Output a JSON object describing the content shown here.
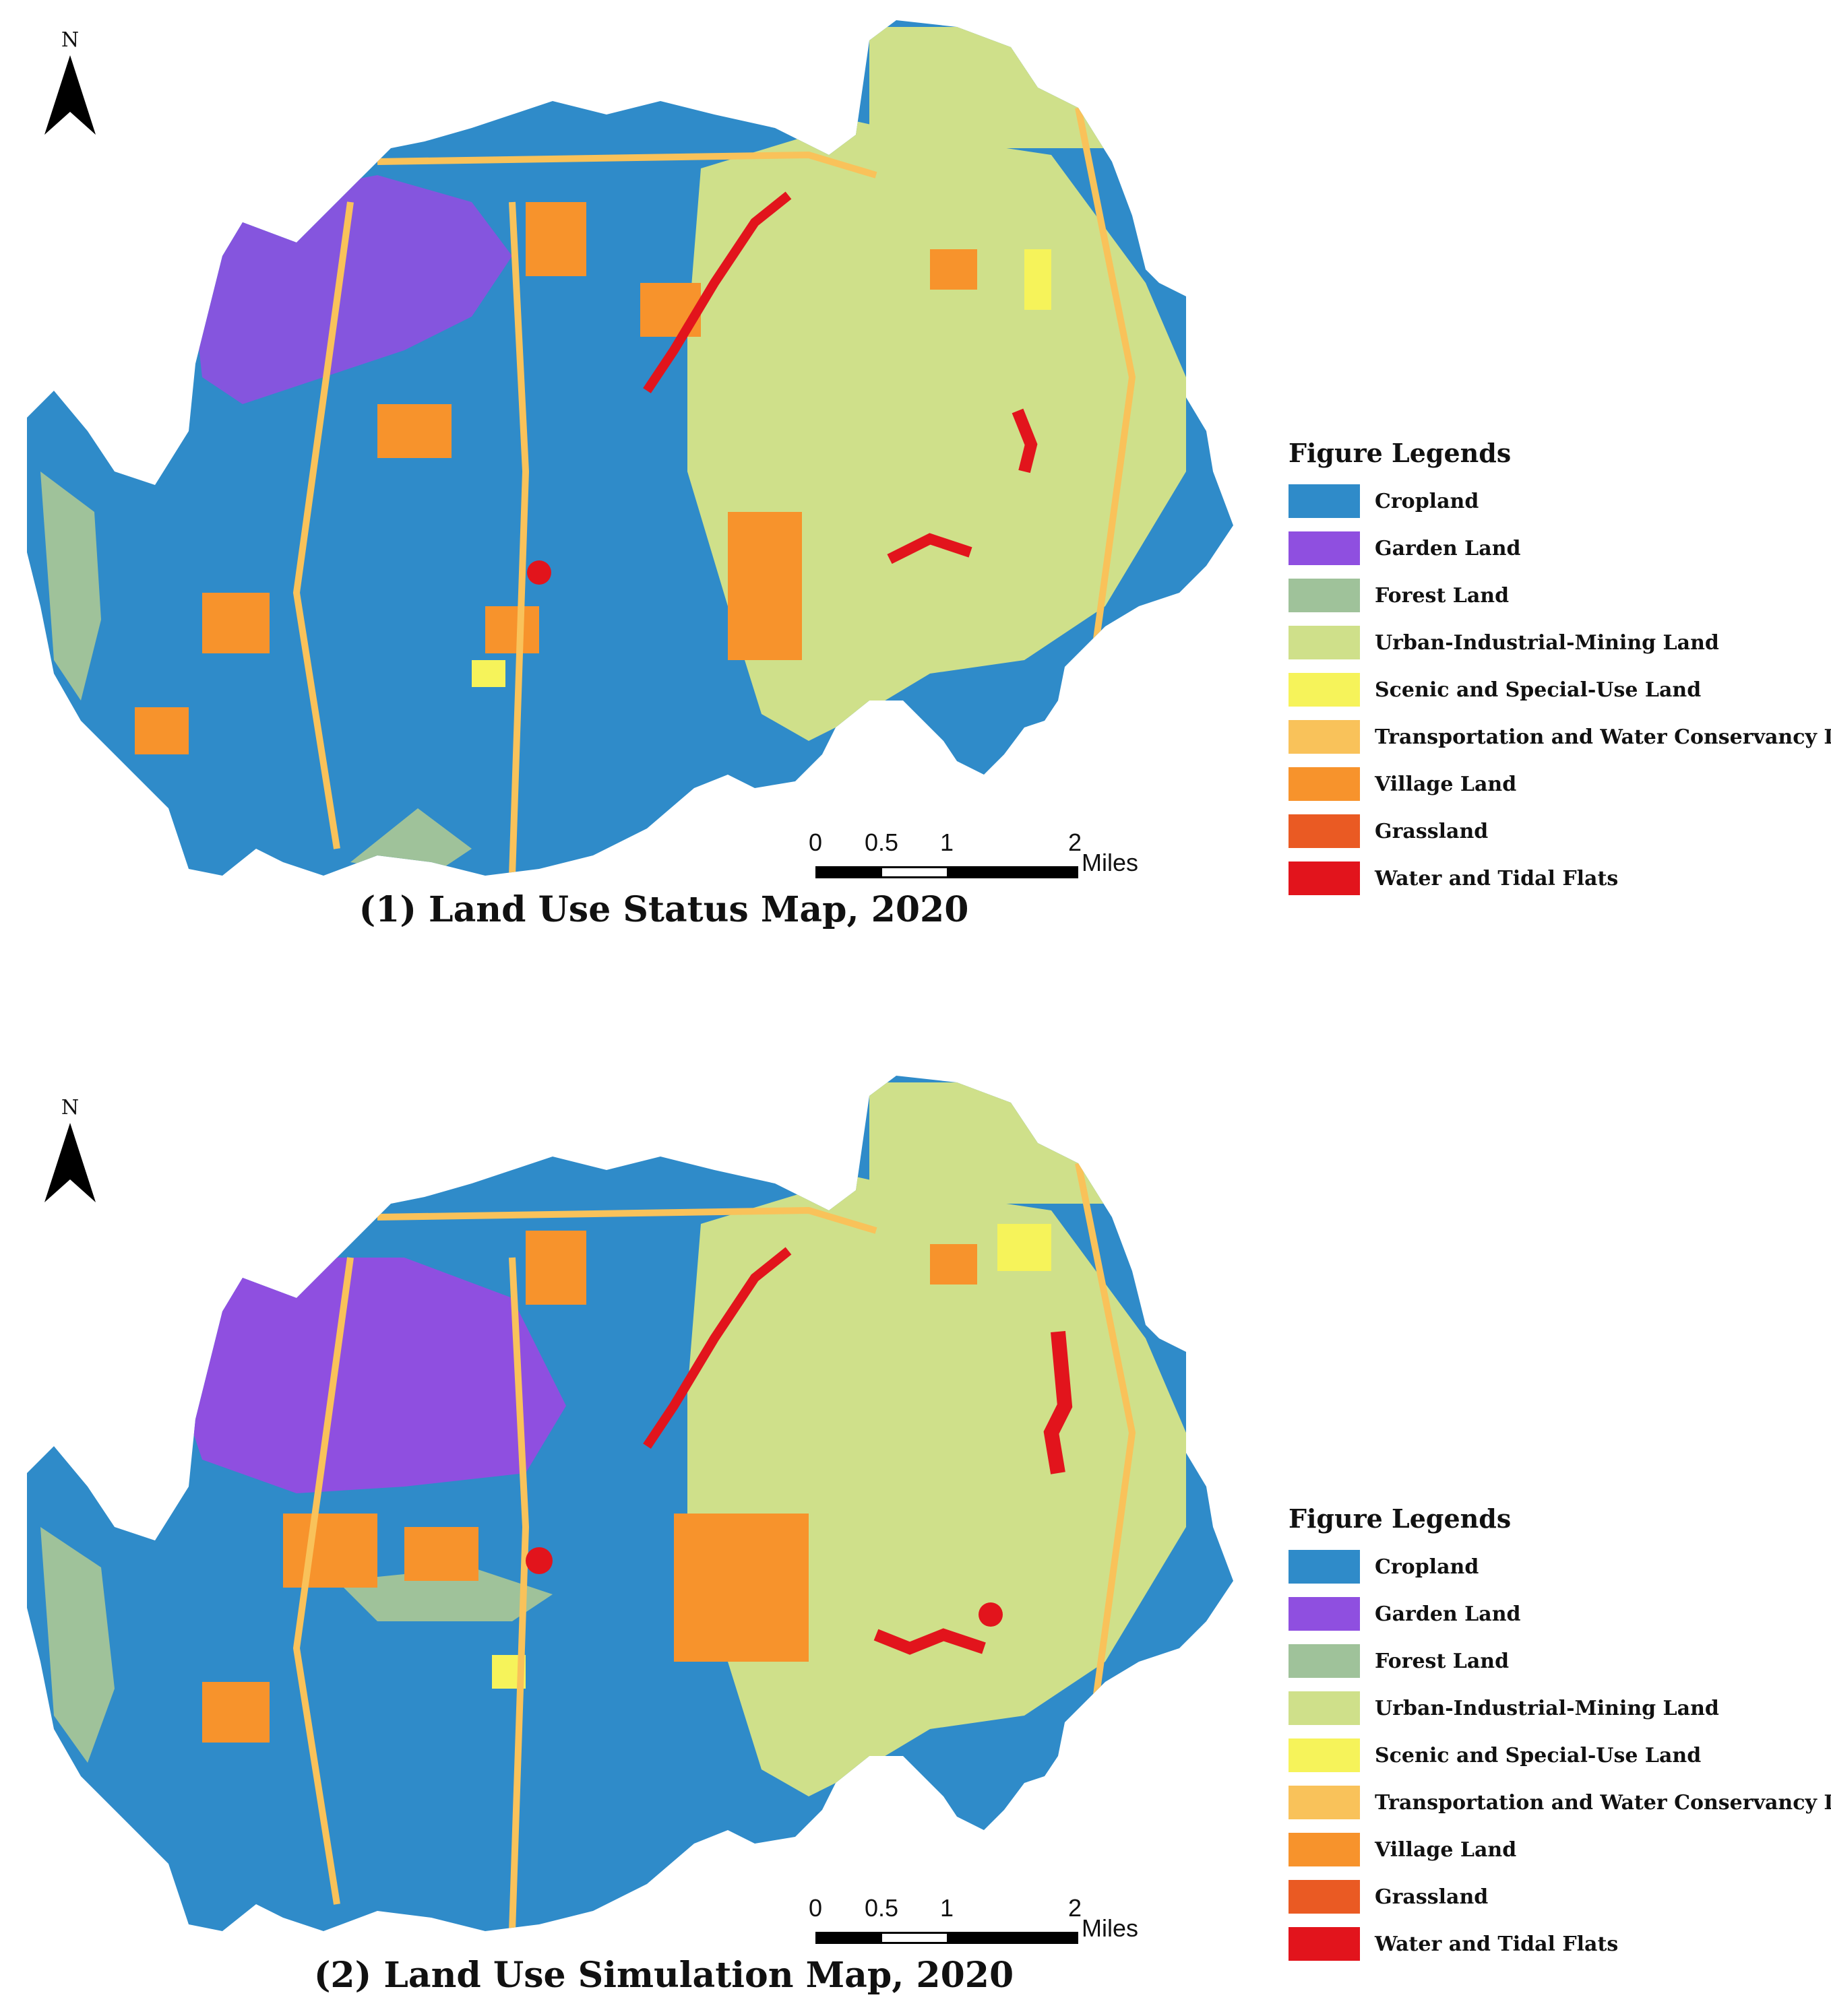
{
  "north_arrow": {
    "label": "N"
  },
  "scale_bar": {
    "ticks": [
      "0",
      "0.5",
      "1",
      "2"
    ],
    "units": "Miles"
  },
  "legend": {
    "title": "Figure Legends",
    "items": [
      {
        "label": "Cropland",
        "color": "#2f8bc9"
      },
      {
        "label": "Garden Land",
        "color": "#8f4fe0"
      },
      {
        "label": "Forest Land",
        "color": "#9fc29a"
      },
      {
        "label": "Urban-Industrial-Mining Land",
        "color": "#cfe08a"
      },
      {
        "label": "Scenic and Special-Use Land",
        "color": "#f6f35a"
      },
      {
        "label": "Transportation and Water Conservancy Land",
        "color": "#f9c25a"
      },
      {
        "label": "Village Land",
        "color": "#f7932c"
      },
      {
        "label": "Grassland",
        "color": "#ea5a23"
      },
      {
        "label": "Water and Tidal Flats",
        "color": "#e2141c"
      }
    ]
  },
  "panels": [
    {
      "caption": "(1) Land Use Status Map, 2020"
    },
    {
      "caption": "(2) Land Use Simulation Map, 2020"
    }
  ]
}
